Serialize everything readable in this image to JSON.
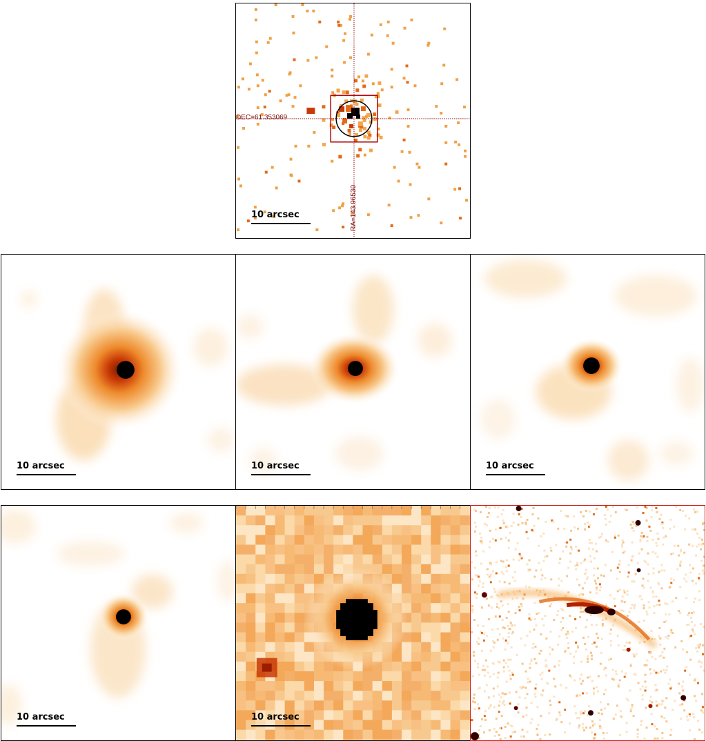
{
  "scale_label": "10 arcsec",
  "top_panel": {
    "dec_label": "DEC=61.353069",
    "ra_label": "RA=143.96530"
  },
  "colors": {
    "cmap_light": "#fde9cc",
    "cmap_mid": "#f4a64a",
    "cmap_orange": "#e46a16",
    "cmap_red": "#b32000",
    "core": "#000000",
    "marker": "#b00000",
    "frame_red": "#c81e14"
  },
  "panels": [
    {
      "id": "xray-counts",
      "row": 1,
      "col": 2
    },
    {
      "id": "smoothed-1",
      "row": 2,
      "col": 1
    },
    {
      "id": "smoothed-2",
      "row": 2,
      "col": 2
    },
    {
      "id": "smoothed-3",
      "row": 2,
      "col": 3
    },
    {
      "id": "smoothed-4",
      "row": 3,
      "col": 1
    },
    {
      "id": "ir-pixelated",
      "row": 3,
      "col": 2
    },
    {
      "id": "optical-hst",
      "row": 3,
      "col": 3
    }
  ]
}
